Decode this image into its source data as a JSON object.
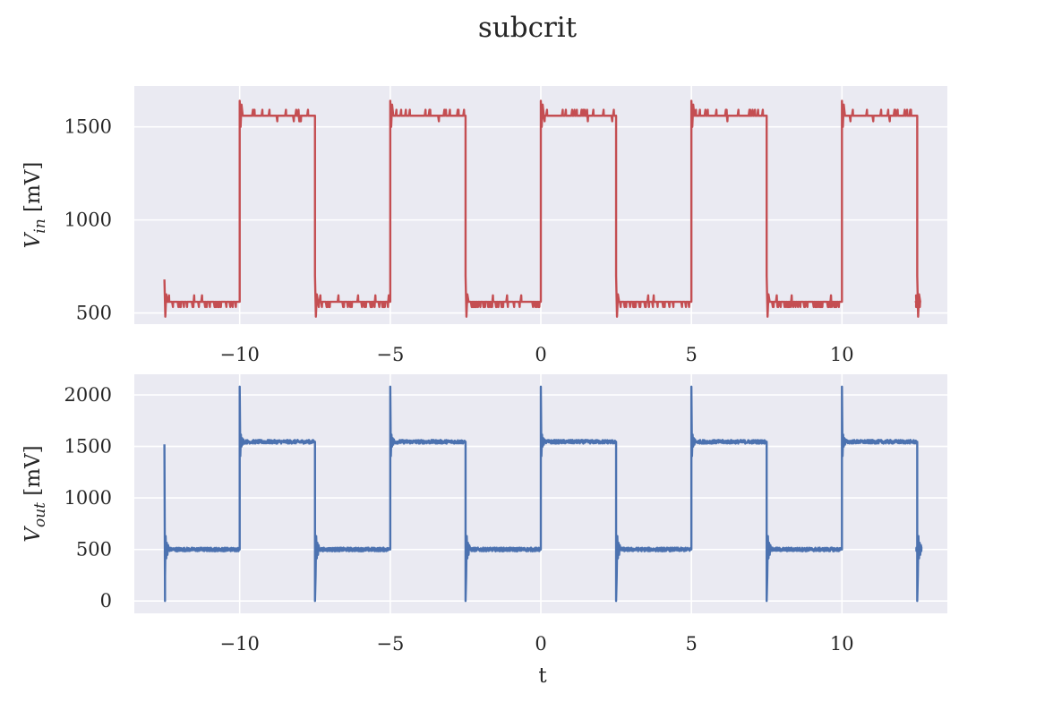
{
  "chart_data": {
    "title": "subcrit",
    "type": "line",
    "subplots": [
      {
        "id": "vin",
        "ylabel_main": "V",
        "ylabel_sub": "in",
        "ylabel_unit": " [mV]",
        "xlim": [
          -13.5,
          13.5
        ],
        "ylim": [
          440,
          1720
        ],
        "xticks": [
          -10,
          -5,
          0,
          5,
          10
        ],
        "xtick_labels": [
          "−10",
          "−5",
          "0",
          "5",
          "10"
        ],
        "yticks": [
          500,
          1000,
          1500
        ],
        "ytick_labels": [
          "500",
          "1000",
          "1500"
        ],
        "color": "#c44e52",
        "series": {
          "t_start": -12.5,
          "t_end": 12.5,
          "period": 5,
          "first_edge": -10,
          "low": 560,
          "high": 1560,
          "start_level": "low",
          "overshoot_high": 1670,
          "undershoot_low": 480
        }
      },
      {
        "id": "vout",
        "ylabel_main": "V",
        "ylabel_sub": "out",
        "ylabel_unit": " [mV]",
        "xlim": [
          -13.5,
          13.5
        ],
        "ylim": [
          -120,
          2200
        ],
        "xticks": [
          -10,
          -5,
          0,
          5,
          10
        ],
        "xtick_labels": [
          "−10",
          "−5",
          "0",
          "5",
          "10"
        ],
        "yticks": [
          0,
          500,
          1000,
          1500,
          2000
        ],
        "ytick_labels": [
          "0",
          "500",
          "1000",
          "1500",
          "2000"
        ],
        "xlabel": "t",
        "color": "#4c72b0",
        "series": {
          "t_start": -12.5,
          "t_end": 12.5,
          "period": 5,
          "first_edge": -10,
          "low": 500,
          "high": 1545,
          "start_level": "low",
          "overshoot_high": 2080,
          "undershoot_low": 0
        }
      }
    ],
    "grid": true
  }
}
